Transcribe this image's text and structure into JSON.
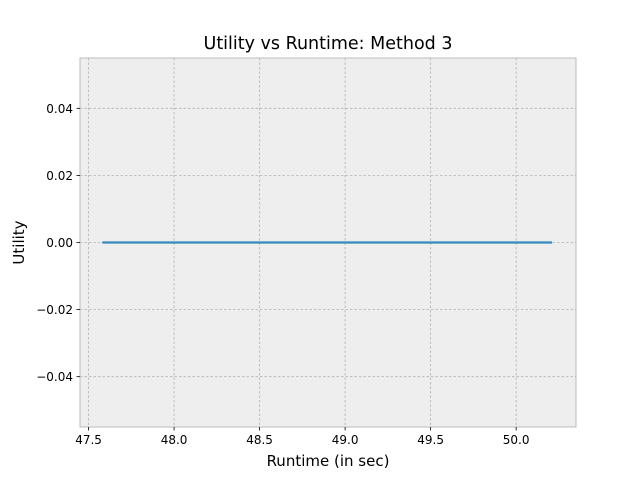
{
  "chart_data": {
    "type": "line",
    "title": "Utility vs Runtime: Method 3",
    "xlabel": "Runtime (in sec)",
    "ylabel": "Utility",
    "xlim": [
      47.45,
      50.35
    ],
    "ylim": [
      -0.055,
      0.055
    ],
    "xticks": [
      47.5,
      48.0,
      48.5,
      49.0,
      49.5,
      50.0
    ],
    "xtick_labels": [
      "47.5",
      "48.0",
      "48.5",
      "49.0",
      "49.5",
      "50.0"
    ],
    "yticks": [
      -0.04,
      -0.02,
      0.0,
      0.02,
      0.04
    ],
    "ytick_labels": [
      "−0.04",
      "−0.02",
      "0.00",
      "0.02",
      "0.04"
    ],
    "grid": true,
    "series": [
      {
        "color": "#348ABD",
        "x": [
          47.58,
          50.21
        ],
        "y": [
          0.0,
          0.0
        ]
      }
    ]
  }
}
